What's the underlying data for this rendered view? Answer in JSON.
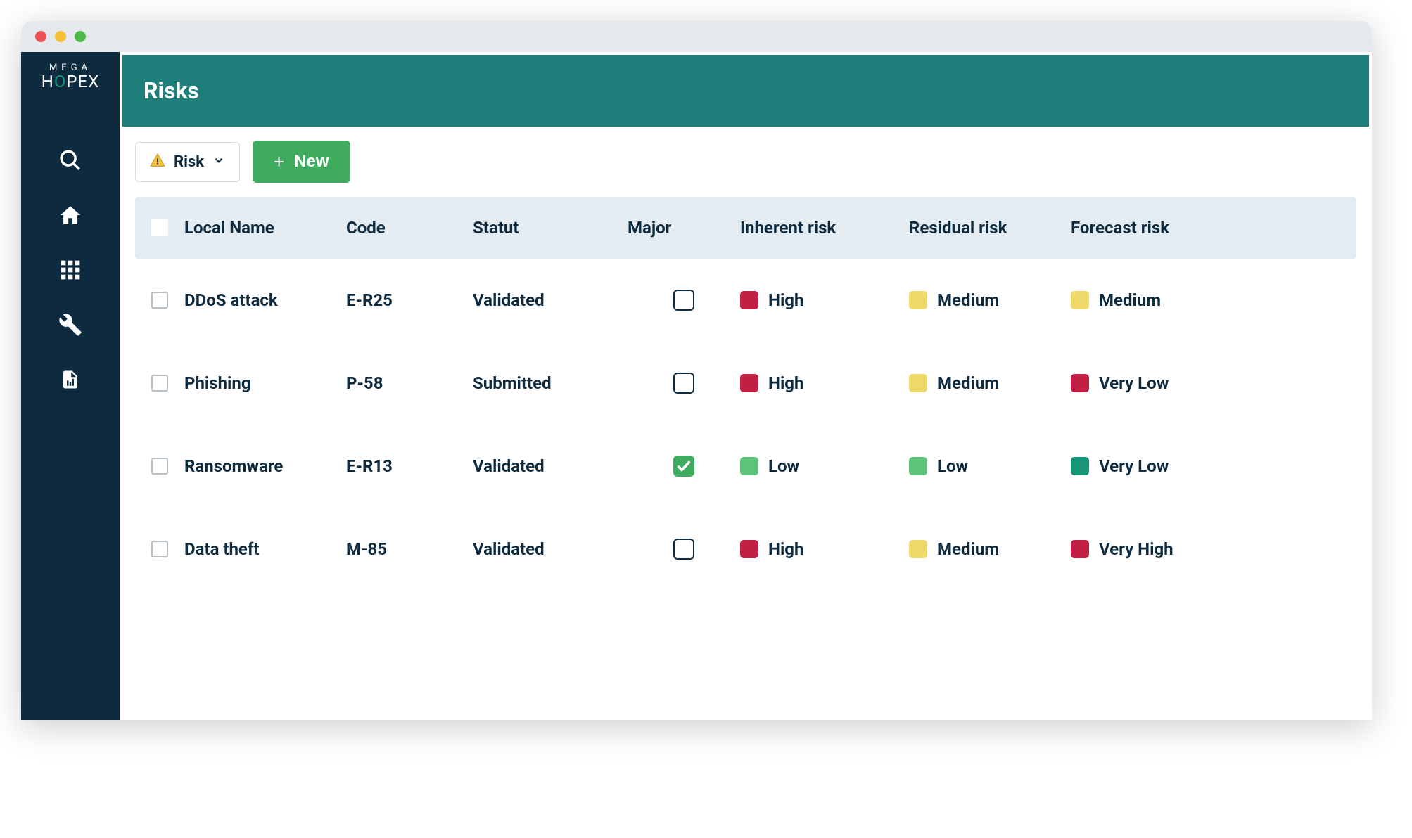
{
  "brand": {
    "top": "MEGA",
    "bottom_h": "H",
    "bottom_o": "O",
    "bottom_pex": "PEX"
  },
  "page": {
    "title": "Risks"
  },
  "toolbar": {
    "filter_label": "Risk",
    "new_label": "New"
  },
  "table": {
    "columns": {
      "local_name": "Local Name",
      "code": "Code",
      "statut": "Statut",
      "major": "Major",
      "inherent": "Inherent risk",
      "residual": "Residual risk",
      "forecast": "Forecast risk"
    },
    "risk_colors": {
      "high": "#c21f45",
      "medium": "#eed86a",
      "low": "#5dc379",
      "very_low_green": "#169579",
      "very_low_red": "#c21f45",
      "very_high": "#c21f45"
    },
    "rows": [
      {
        "local_name": "DDoS attack",
        "code": "E-R25",
        "statut": "Validated",
        "major": false,
        "inherent": {
          "label": "High",
          "color": "#c21f45"
        },
        "residual": {
          "label": "Medium",
          "color": "#eed86a"
        },
        "forecast": {
          "label": "Medium",
          "color": "#eed86a"
        }
      },
      {
        "local_name": "Phishing",
        "code": "P-58",
        "statut": "Submitted",
        "major": false,
        "inherent": {
          "label": "High",
          "color": "#c21f45"
        },
        "residual": {
          "label": "Medium",
          "color": "#eed86a"
        },
        "forecast": {
          "label": "Very Low",
          "color": "#c21f45"
        }
      },
      {
        "local_name": "Ransomware",
        "code": "E-R13",
        "statut": "Validated",
        "major": true,
        "inherent": {
          "label": "Low",
          "color": "#5dc379"
        },
        "residual": {
          "label": "Low",
          "color": "#5dc379"
        },
        "forecast": {
          "label": "Very Low",
          "color": "#169579"
        }
      },
      {
        "local_name": "Data theft",
        "code": "M-85",
        "statut": "Validated",
        "major": false,
        "inherent": {
          "label": "High",
          "color": "#c21f45"
        },
        "residual": {
          "label": "Medium",
          "color": "#eed86a"
        },
        "forecast": {
          "label": "Very High",
          "color": "#c21f45"
        }
      }
    ]
  }
}
